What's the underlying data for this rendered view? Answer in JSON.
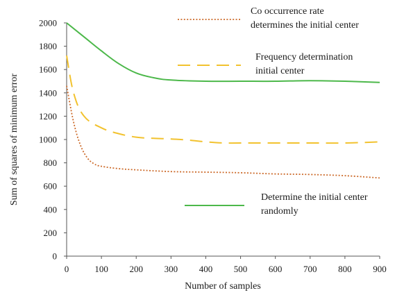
{
  "chart_data": {
    "type": "line",
    "xlabel": "Number of samples",
    "ylabel": "Sum of squares of minimum error",
    "xlim": [
      0,
      900
    ],
    "ylim": [
      0,
      2000
    ],
    "x_ticks": [
      "0",
      "100",
      "200",
      "300",
      "400",
      "500",
      "600",
      "700",
      "800",
      "900"
    ],
    "y_ticks": [
      "0",
      "200",
      "400",
      "600",
      "800",
      "1000",
      "1200",
      "1400",
      "1600",
      "1800",
      "2000"
    ],
    "grid": false,
    "legend_placement": "right",
    "series": [
      {
        "name_lines": [
          "Co occurrence rate",
          "determines the initial center"
        ],
        "color": "#cc6a2a",
        "style": "dotted",
        "x": [
          0,
          20,
          40,
          60,
          80,
          100,
          150,
          200,
          300,
          400,
          500,
          600,
          700,
          800,
          900
        ],
        "y": [
          1460,
          1150,
          950,
          840,
          790,
          770,
          750,
          740,
          725,
          720,
          715,
          705,
          700,
          690,
          670
        ]
      },
      {
        "name_lines": [
          "Frequency determination",
          "initial center"
        ],
        "color": "#f2c22e",
        "style": "dashed",
        "x": [
          0,
          20,
          50,
          100,
          150,
          200,
          250,
          300,
          350,
          400,
          450,
          500,
          600,
          700,
          800,
          900
        ],
        "y": [
          1720,
          1400,
          1200,
          1100,
          1050,
          1020,
          1010,
          1005,
          995,
          980,
          970,
          970,
          970,
          970,
          970,
          980
        ]
      },
      {
        "name_lines": [
          "Determine the initial center",
          "randomly"
        ],
        "color": "#4cb84a",
        "style": "solid",
        "x": [
          0,
          50,
          100,
          150,
          200,
          250,
          300,
          400,
          500,
          600,
          700,
          800,
          900
        ],
        "y": [
          2000,
          1880,
          1760,
          1650,
          1570,
          1530,
          1510,
          1500,
          1500,
          1500,
          1505,
          1500,
          1490
        ]
      }
    ]
  }
}
